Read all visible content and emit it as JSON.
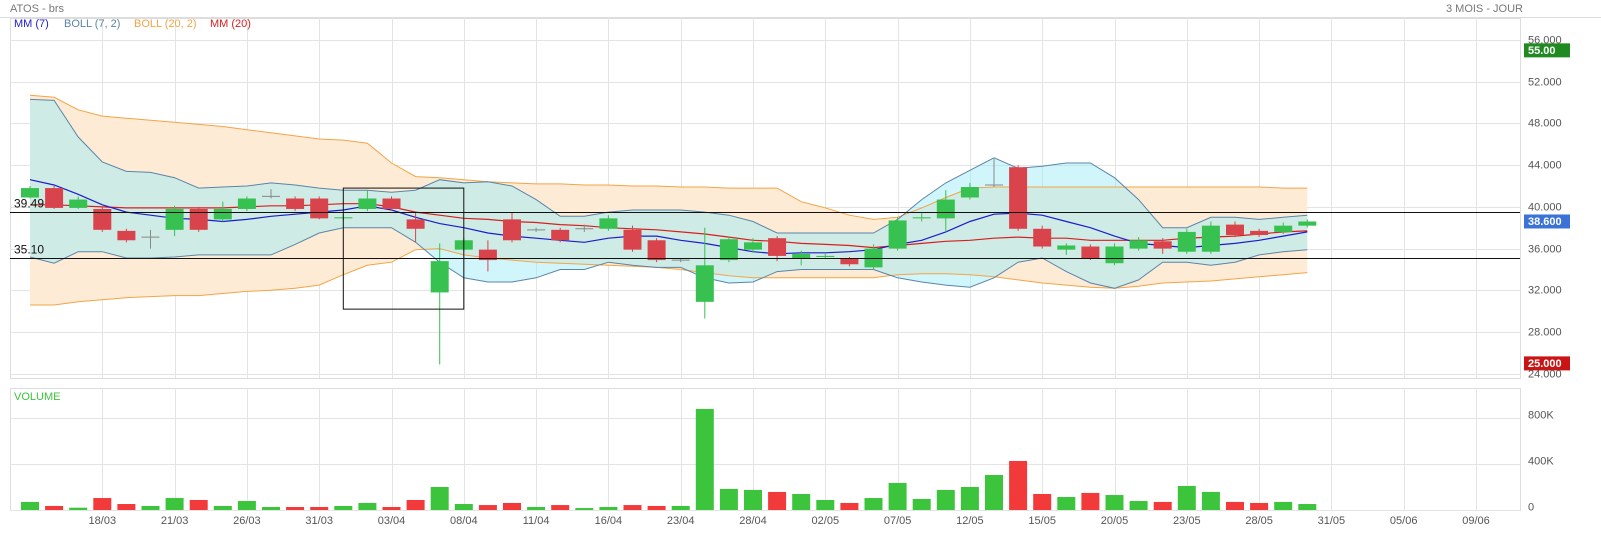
{
  "chart_data": {
    "type": "candlestick",
    "title": "ATOS - brs",
    "period": "3 MOIS - JOUR",
    "categories": [
      null,
      null,
      null,
      "18/03",
      null,
      null,
      "21/03",
      null,
      null,
      "26/03",
      null,
      null,
      "31/03",
      null,
      null,
      "03/04",
      null,
      null,
      "08/04",
      null,
      null,
      "11/04",
      null,
      null,
      "16/04",
      null,
      null,
      "23/04",
      null,
      null,
      "28/04",
      null,
      null,
      "02/05",
      null,
      null,
      "07/05",
      null,
      null,
      "12/05",
      null,
      null,
      "15/05",
      null,
      null,
      "20/05",
      null,
      null,
      "23/05",
      null,
      null,
      "28/05",
      null,
      null,
      "31/05",
      null,
      null,
      "05/06",
      null,
      null,
      "09/06",
      null
    ],
    "open": [
      40.9,
      41.8,
      39.9,
      39.8,
      37.7,
      37.1,
      37.8,
      39.8,
      38.8,
      39.8,
      41.0,
      40.8,
      40.8,
      38.9,
      39.8,
      40.8,
      38.8,
      31.8,
      35.9,
      35.9,
      38.8,
      37.8,
      37.8,
      37.9,
      37.9,
      37.8,
      36.8,
      34.9,
      30.9,
      34.9,
      35.9,
      37.0,
      35.1,
      35.2,
      35.0,
      34.2,
      36.0,
      38.9,
      38.9,
      40.9,
      42.1,
      43.8,
      37.9,
      35.9,
      36.2,
      34.6,
      36.0,
      36.7,
      35.7,
      35.7,
      38.3,
      37.7,
      37.6,
      38.2,
      null,
      null,
      null,
      null,
      null,
      null,
      null,
      null
    ],
    "high": [
      42.0,
      42.0,
      41.0,
      40.0,
      37.9,
      37.8,
      40.1,
      40.0,
      40.5,
      41.0,
      41.7,
      41.0,
      41.0,
      39.3,
      41.6,
      41.0,
      39.5,
      36.5,
      37.0,
      36.8,
      39.5,
      38.0,
      38.0,
      38.3,
      39.2,
      38.2,
      37.0,
      35.1,
      38.0,
      37.2,
      37.0,
      37.2,
      35.8,
      35.6,
      35.2,
      36.4,
      39.0,
      39.4,
      41.6,
      42.3,
      44.6,
      44.0,
      38.2,
      36.5,
      36.4,
      36.5,
      37.1,
      37.0,
      37.9,
      38.6,
      38.6,
      37.9,
      38.5,
      38.8,
      null,
      null,
      null,
      null,
      null,
      null,
      null,
      null
    ],
    "low": [
      40.8,
      39.8,
      39.8,
      37.6,
      36.6,
      36.0,
      37.2,
      37.6,
      38.6,
      39.6,
      40.8,
      39.6,
      38.8,
      38.7,
      39.6,
      39.6,
      36.6,
      24.9,
      35.7,
      33.8,
      36.6,
      37.6,
      36.6,
      37.6,
      37.7,
      35.7,
      34.7,
      34.7,
      29.3,
      34.7,
      35.6,
      34.8,
      34.4,
      35.0,
      34.3,
      34.0,
      35.8,
      38.6,
      37.6,
      40.7,
      41.9,
      37.7,
      36.0,
      35.4,
      34.9,
      34.4,
      35.8,
      35.5,
      35.5,
      35.5,
      37.1,
      37.1,
      37.4,
      38.0,
      null,
      null,
      null,
      null,
      null,
      null,
      null,
      null
    ],
    "close": [
      41.8,
      39.9,
      40.7,
      37.8,
      36.8,
      37.1,
      39.8,
      37.8,
      39.8,
      40.8,
      41.0,
      39.8,
      38.9,
      39.0,
      40.8,
      39.8,
      37.9,
      34.8,
      36.8,
      34.9,
      36.8,
      37.8,
      36.8,
      37.9,
      38.9,
      35.9,
      34.9,
      34.9,
      34.4,
      36.9,
      36.6,
      35.3,
      35.5,
      35.3,
      34.5,
      36.0,
      38.7,
      39.0,
      40.7,
      41.9,
      42.1,
      37.9,
      36.2,
      36.3,
      35.1,
      36.2,
      36.8,
      36.0,
      37.6,
      38.2,
      37.3,
      37.3,
      38.2,
      38.6,
      null,
      null,
      null,
      null,
      null,
      null,
      null,
      null
    ],
    "up_color": "#36c150",
    "down_color": "#d9434b",
    "overlays": [
      {
        "name": "MM (7)",
        "color": "#1c1ccf",
        "values": [
          42.6,
          42.1,
          41.2,
          40.2,
          39.5,
          39.2,
          38.9,
          38.8,
          38.6,
          38.8,
          39.1,
          39.3,
          39.5,
          39.7,
          40.1,
          39.7,
          39.0,
          38.4,
          38.0,
          37.5,
          37.2,
          37.0,
          36.8,
          36.6,
          37.0,
          37.2,
          37.2,
          36.8,
          36.5,
          36.1,
          35.7,
          35.5,
          35.6,
          35.6,
          35.7,
          35.9,
          36.4,
          36.8,
          37.6,
          38.6,
          39.3,
          39.4,
          39.2,
          38.6,
          38.0,
          37.2,
          36.5,
          36.3,
          36.1,
          36.3,
          36.5,
          36.8,
          37.2,
          37.6,
          null,
          null,
          null,
          null,
          null,
          null,
          null,
          null
        ]
      },
      {
        "name": "BOLL (7, 2)",
        "color": "#5b84a8",
        "fill": "rgba(150,236,248,0.45)",
        "upper": [
          50.3,
          50.2,
          46.7,
          44.3,
          43.4,
          43.3,
          42.8,
          41.8,
          41.9,
          42.0,
          42.3,
          42.1,
          41.8,
          41.6,
          41.6,
          41.4,
          41.6,
          42.6,
          42.3,
          42.4,
          42.0,
          40.7,
          39.1,
          39.1,
          39.5,
          39.7,
          39.7,
          39.7,
          39.5,
          39.2,
          38.6,
          37.5,
          37.5,
          37.5,
          37.5,
          37.5,
          38.8,
          40.7,
          42.3,
          43.5,
          44.7,
          43.7,
          43.9,
          44.2,
          44.2,
          42.8,
          40.7,
          38.0,
          38.0,
          39.0,
          39.0,
          38.8,
          39.0,
          39.2,
          null,
          null,
          null,
          null,
          null,
          null,
          null,
          null
        ],
        "lower": [
          35.2,
          34.6,
          35.7,
          35.7,
          35.1,
          35.1,
          35.2,
          35.4,
          35.4,
          35.4,
          35.4,
          36.4,
          37.5,
          38.0,
          38.0,
          38.0,
          36.6,
          34.7,
          33.2,
          32.8,
          32.8,
          33.2,
          34.0,
          34.0,
          34.7,
          34.4,
          34.2,
          34.2,
          33.2,
          32.7,
          32.8,
          33.8,
          34.0,
          34.0,
          34.0,
          34.0,
          33.2,
          32.8,
          32.5,
          32.3,
          33.2,
          34.7,
          35.1,
          33.8,
          32.7,
          32.2,
          33.0,
          34.7,
          34.7,
          34.4,
          34.7,
          35.4,
          35.7,
          35.9,
          null,
          null,
          null,
          null,
          null,
          null,
          null,
          null
        ]
      },
      {
        "name": "BOLL (20, 2)",
        "color": "#f4a445",
        "fill": "#fdebd6",
        "upper": [
          50.7,
          50.5,
          49.3,
          48.7,
          48.5,
          48.3,
          48.1,
          47.9,
          47.7,
          47.4,
          47.1,
          46.8,
          46.5,
          46.4,
          46.1,
          44.2,
          42.9,
          42.8,
          42.6,
          42.4,
          42.3,
          42.2,
          42.2,
          42.1,
          42.1,
          42.0,
          42.0,
          41.9,
          41.9,
          41.8,
          41.8,
          41.8,
          40.5,
          39.9,
          39.2,
          38.8,
          39.0,
          39.9,
          40.9,
          41.8,
          41.9,
          41.9,
          41.9,
          41.9,
          41.9,
          41.9,
          41.9,
          41.9,
          41.9,
          41.9,
          41.9,
          41.9,
          41.8,
          41.8,
          null,
          null,
          null,
          null,
          null,
          null,
          null,
          null
        ],
        "lower": [
          30.6,
          30.6,
          30.9,
          31.1,
          31.3,
          31.4,
          31.5,
          31.5,
          31.7,
          31.9,
          32.0,
          32.2,
          32.5,
          33.5,
          34.4,
          34.7,
          35.9,
          36.0,
          35.4,
          35.1,
          34.9,
          34.7,
          34.6,
          34.5,
          34.4,
          34.3,
          34.2,
          34.0,
          33.7,
          33.4,
          33.2,
          33.2,
          33.2,
          33.2,
          33.2,
          33.2,
          33.5,
          33.6,
          33.6,
          33.5,
          33.3,
          33.0,
          32.7,
          32.5,
          32.3,
          32.2,
          32.4,
          32.7,
          32.8,
          32.9,
          33.1,
          33.3,
          33.5,
          33.7,
          null,
          null,
          null,
          null,
          null,
          null,
          null,
          null
        ]
      },
      {
        "name": "MM (20)",
        "color": "#d61f1f",
        "values": [
          40.2,
          40.2,
          40.1,
          40.0,
          39.9,
          39.9,
          39.9,
          39.9,
          39.9,
          40.0,
          40.1,
          40.1,
          40.2,
          40.3,
          40.3,
          40.0,
          39.5,
          39.2,
          38.9,
          38.8,
          38.6,
          38.5,
          38.3,
          38.2,
          38.0,
          37.9,
          37.8,
          37.6,
          37.4,
          37.1,
          36.8,
          36.7,
          36.5,
          36.4,
          36.3,
          36.1,
          36.3,
          36.5,
          36.7,
          36.8,
          37.0,
          37.1,
          37.0,
          37.0,
          36.8,
          36.8,
          36.8,
          36.8,
          37.0,
          37.1,
          37.2,
          37.4,
          37.6,
          37.7,
          null,
          null,
          null,
          null,
          null,
          null,
          null,
          null
        ]
      }
    ],
    "ylim": [
      23.6,
      58.1
    ],
    "yticks": [
      {
        "value": 24,
        "label": "24.000"
      },
      {
        "value": 28,
        "label": "28.000"
      },
      {
        "value": 32,
        "label": "32.000"
      },
      {
        "value": 36,
        "label": "36.000"
      },
      {
        "value": 40,
        "label": "40.000"
      },
      {
        "value": 44,
        "label": "44.000"
      },
      {
        "value": 48,
        "label": "48.000"
      },
      {
        "value": 52,
        "label": "52.000"
      },
      {
        "value": 56,
        "label": "56.000"
      }
    ],
    "levels": [
      {
        "value": 39.49,
        "label": "39.49"
      },
      {
        "value": 35.1,
        "label": "35.10"
      }
    ],
    "price_labels": [
      {
        "value": 55,
        "label": "55.00",
        "color": "#1f8a1f"
      },
      {
        "value": 38.6,
        "label": "38.600",
        "color": "#3a72d8"
      },
      {
        "value": 25,
        "label": "25.000",
        "color": "#c81414"
      }
    ],
    "box": {
      "x": [
        13,
        18
      ],
      "y": [
        41.8,
        30.2
      ]
    },
    "grid": true,
    "volume": {
      "title": "VOLUME",
      "values": [
        70000,
        35000,
        20000,
        104000,
        52000,
        35000,
        104000,
        87000,
        35000,
        78000,
        26000,
        26000,
        26000,
        35000,
        61000,
        26000,
        87000,
        200000,
        52000,
        43000,
        61000,
        26000,
        43000,
        17000,
        26000,
        43000,
        35000,
        35000,
        878000,
        183000,
        174000,
        157000,
        139000,
        87000,
        61000,
        104000,
        235000,
        96000,
        174000,
        200000,
        304000,
        426000,
        139000,
        113000,
        148000,
        130000,
        78000,
        70000,
        209000,
        157000,
        70000,
        61000,
        70000,
        52000,
        null,
        null,
        null,
        null,
        null,
        null,
        null,
        null
      ],
      "up_color": "#3cc43c",
      "down_color": "#f23a3a",
      "ylim": [
        0,
        1060000
      ],
      "yticks": [
        0,
        {
          "value": 400000,
          "label": "400K"
        },
        {
          "value": 800000,
          "label": "800K"
        }
      ]
    }
  }
}
